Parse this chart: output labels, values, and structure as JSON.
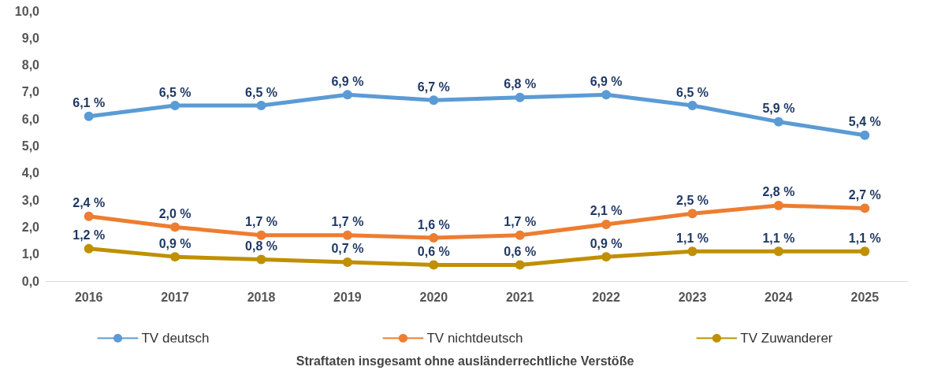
{
  "chart_data": {
    "type": "line",
    "annotations": [
      "Straftaten insgesamt ohne ausländerrechtliche Verstöße"
    ],
    "categories": [
      "2016",
      "2017",
      "2018",
      "2019",
      "2020",
      "2021",
      "2022",
      "2023",
      "2024",
      "2025"
    ],
    "series": [
      {
        "name": "TV deutsch",
        "color": "#5b9bd5",
        "values": [
          6.1,
          6.5,
          6.5,
          6.9,
          6.7,
          6.8,
          6.9,
          6.5,
          5.9,
          5.4
        ],
        "value_labels": [
          "6,1 %",
          "6,5 %",
          "6,5 %",
          "6,9 %",
          "6,7 %",
          "6,8 %",
          "6,9 %",
          "6,5 %",
          "5,9 %",
          "5,4 %"
        ]
      },
      {
        "name": "TV nichtdeutsch",
        "color": "#ed7d31",
        "values": [
          2.4,
          2.0,
          1.7,
          1.7,
          1.6,
          1.7,
          2.1,
          2.5,
          2.8,
          2.7
        ],
        "value_labels": [
          "2,4 %",
          "2,0 %",
          "1,7 %",
          "1,7 %",
          "1,6 %",
          "1,7 %",
          "2,1 %",
          "2,5 %",
          "2,8 %",
          "2,7 %"
        ]
      },
      {
        "name": "TV Zuwanderer",
        "color": "#bf9000",
        "values": [
          1.2,
          0.9,
          0.8,
          0.7,
          0.6,
          0.6,
          0.9,
          1.1,
          1.1,
          1.1
        ],
        "value_labels": [
          "1,2 %",
          "0,9 %",
          "0,8 %",
          "0,7 %",
          "0,6 %",
          "0,6 %",
          "0,9 %",
          "1,1 %",
          "1,1 %",
          "1,1 %"
        ]
      }
    ],
    "ylim": [
      0,
      10
    ],
    "yticks": [
      {
        "value": 0,
        "label": "0,0"
      },
      {
        "value": 1,
        "label": "1,0"
      },
      {
        "value": 2,
        "label": "2,0"
      },
      {
        "value": 3,
        "label": "3,0"
      },
      {
        "value": 4,
        "label": "4,0"
      },
      {
        "value": 5,
        "label": "5,0"
      },
      {
        "value": 6,
        "label": "6,0"
      },
      {
        "value": 7,
        "label": "7,0"
      },
      {
        "value": 8,
        "label": "8,0"
      },
      {
        "value": 9,
        "label": "9,0"
      },
      {
        "value": 10,
        "label": "10,0"
      }
    ],
    "grid": false,
    "legend": "bottom",
    "marker": "circle",
    "line_style": "solid"
  }
}
